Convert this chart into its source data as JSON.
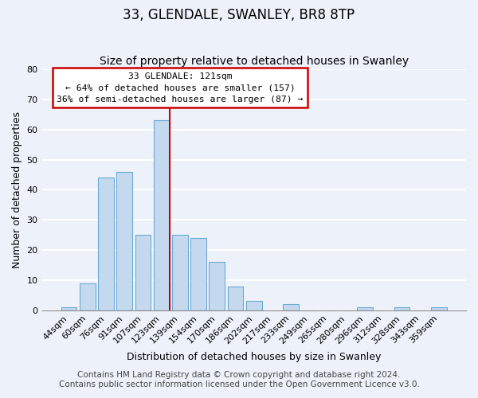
{
  "title": "33, GLENDALE, SWANLEY, BR8 8TP",
  "subtitle": "Size of property relative to detached houses in Swanley",
  "xlabel": "Distribution of detached houses by size in Swanley",
  "ylabel": "Number of detached properties",
  "categories": [
    "44sqm",
    "60sqm",
    "76sqm",
    "91sqm",
    "107sqm",
    "123sqm",
    "139sqm",
    "154sqm",
    "170sqm",
    "186sqm",
    "202sqm",
    "217sqm",
    "233sqm",
    "249sqm",
    "265sqm",
    "280sqm",
    "296sqm",
    "312sqm",
    "328sqm",
    "343sqm",
    "359sqm"
  ],
  "values": [
    1,
    9,
    44,
    46,
    25,
    63,
    25,
    24,
    16,
    8,
    3,
    0,
    2,
    0,
    0,
    0,
    1,
    0,
    1,
    0,
    1
  ],
  "bar_color": "#c5d9ee",
  "bar_edge_color": "#6aaad4",
  "marker_label": "33 GLENDALE: 121sqm",
  "annotation_line1": "← 64% of detached houses are smaller (157)",
  "annotation_line2": "36% of semi-detached houses are larger (87) →",
  "annotation_box_facecolor": "#ffffff",
  "annotation_box_edgecolor": "#cc0000",
  "marker_line_color": "#cc0000",
  "ylim": [
    0,
    80
  ],
  "yticks": [
    0,
    10,
    20,
    30,
    40,
    50,
    60,
    70,
    80
  ],
  "footer_line1": "Contains HM Land Registry data © Crown copyright and database right 2024.",
  "footer_line2": "Contains public sector information licensed under the Open Government Licence v3.0.",
  "bg_color": "#edf2fa",
  "plot_bg_color": "#edf2fa",
  "grid_color": "#ffffff",
  "title_fontsize": 12,
  "subtitle_fontsize": 10,
  "axis_label_fontsize": 9,
  "tick_fontsize": 8,
  "footer_fontsize": 7.5
}
